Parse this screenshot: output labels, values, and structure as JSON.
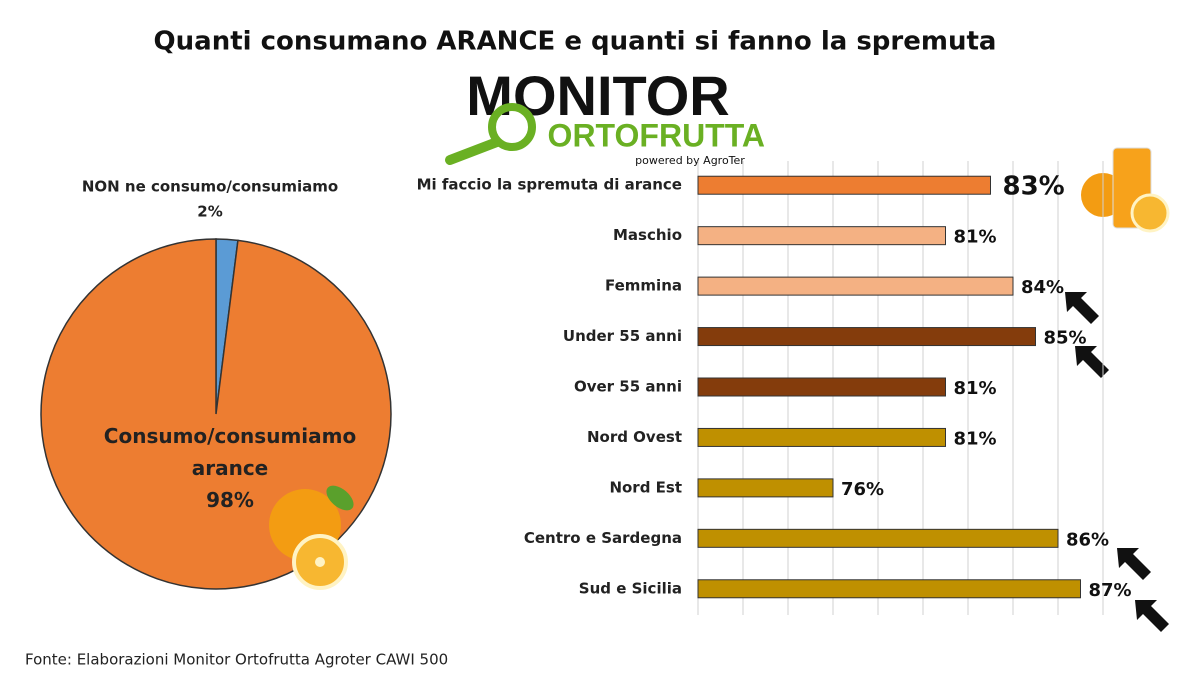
{
  "header": {
    "title": "Quanti consumano ARANCE e quanti si fanno la spremuta"
  },
  "logo": {
    "name": "MONITOR",
    "subname": "ORTOFRUTTA",
    "tagline": "powered by AgroTer"
  },
  "chart_data": [
    {
      "type": "pie",
      "categories": [
        "NON ne consumo/consumiamo",
        "Consumo/consumiamo arance"
      ],
      "values": [
        2,
        98
      ],
      "value_labels": [
        "2%",
        "98%"
      ],
      "colors": [
        "#5b9bd5",
        "#ed7d31"
      ]
    },
    {
      "type": "bar",
      "orientation": "horizontal",
      "categories": [
        "Mi faccio la spremuta di arance",
        "Maschio",
        "Femmina",
        "Under 55 anni",
        "Over 55 anni",
        "Nord Ovest",
        "Nord Est",
        "Centro e Sardegna",
        "Sud e Sicilia"
      ],
      "values": [
        83,
        81,
        84,
        85,
        81,
        81,
        76,
        86,
        87
      ],
      "value_labels": [
        "83%",
        "81%",
        "84%",
        "85%",
        "81%",
        "81%",
        "76%",
        "86%",
        "87%"
      ],
      "colors": [
        "#ed7d31",
        "#f4b183",
        "#f4b183",
        "#843c0c",
        "#843c0c",
        "#bf9000",
        "#bf9000",
        "#bf9000",
        "#bf9000"
      ],
      "xlim": [
        70,
        88
      ],
      "xticks": [
        70,
        72,
        74,
        76,
        78,
        80,
        82,
        84,
        86,
        88
      ],
      "grid": true,
      "tick_labels": false
    }
  ],
  "footer": {
    "source": "Fonte: Elaborazioni Monitor Ortofrutta Agroter CAWI 500"
  }
}
